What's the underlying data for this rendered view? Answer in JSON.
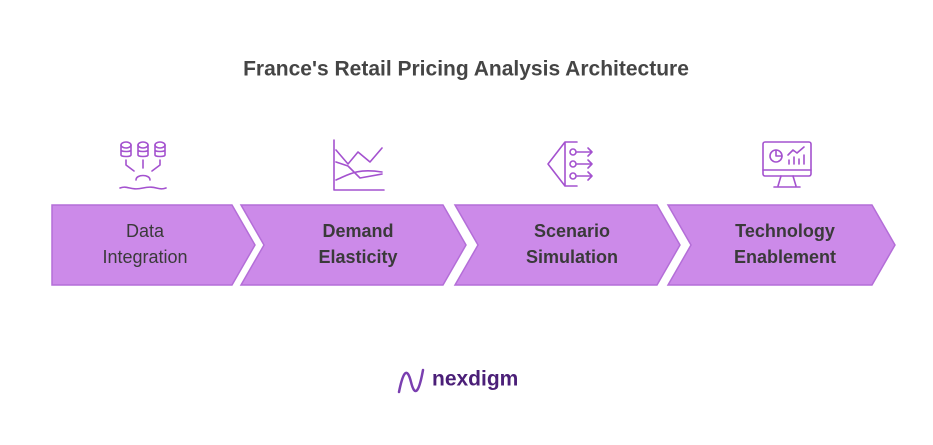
{
  "header": {
    "title": "France's Retail Pricing Analysis Architecture"
  },
  "steps": [
    {
      "lines": [
        "Data",
        "Integration"
      ]
    },
    {
      "lines": [
        "Demand",
        "Elasticity"
      ]
    },
    {
      "lines": [
        "Scenario",
        "Simulation"
      ]
    },
    {
      "lines": [
        "Technology",
        "Enablement"
      ]
    }
  ],
  "footer": {
    "logo": "nexdigm"
  }
}
